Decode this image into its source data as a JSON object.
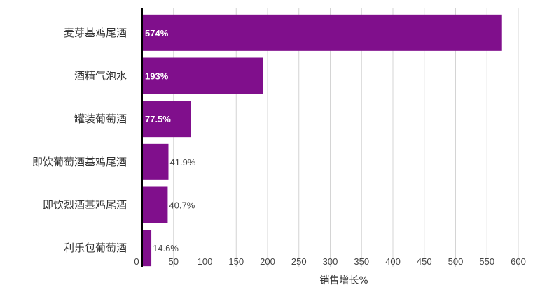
{
  "chart_data": {
    "type": "bar",
    "orientation": "horizontal",
    "categories": [
      "麦芽基鸡尾酒",
      "酒精气泡水",
      "罐装葡萄酒",
      "即饮葡萄酒基鸡尾酒",
      "即饮烈酒基鸡尾酒",
      "利乐包葡萄酒"
    ],
    "values": [
      574,
      193,
      77.5,
      41.9,
      40.7,
      14.6
    ],
    "value_labels": [
      "574%",
      "193%",
      "77.5%",
      "41.9%",
      "40.7%",
      "14.6%"
    ],
    "title": "",
    "xlabel": "销售增长%",
    "ylabel": "",
    "xlim": [
      0,
      600
    ],
    "xticks": [
      0,
      50,
      100,
      150,
      200,
      250,
      300,
      350,
      400,
      450,
      500,
      550,
      600
    ],
    "grid": "vertical",
    "legend": "none",
    "bar_color": "#800f8c"
  }
}
